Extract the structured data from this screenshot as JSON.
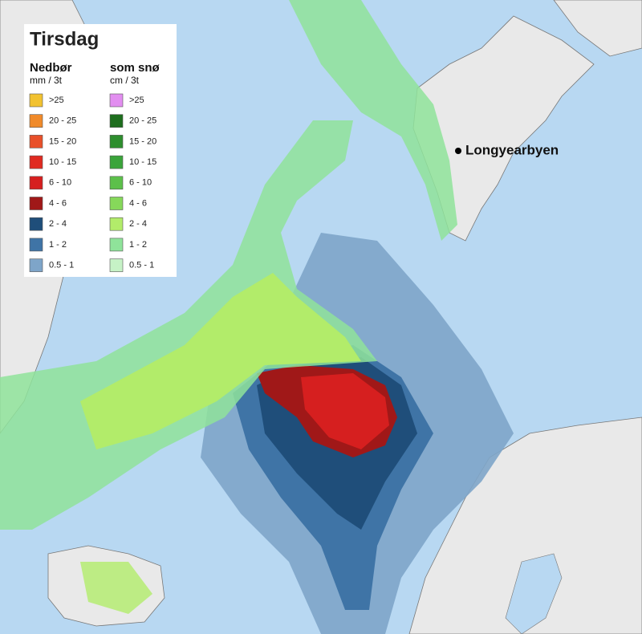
{
  "title": "Tirsdag",
  "legend": {
    "rain": {
      "title": "Nedbør",
      "unit": "mm / 3t",
      "items": [
        {
          "label": ">25",
          "color": "#f2c230"
        },
        {
          "label": "20 - 25",
          "color": "#f08a2a"
        },
        {
          "label": "15 - 20",
          "color": "#e8502a"
        },
        {
          "label": "10 - 15",
          "color": "#e02a20"
        },
        {
          "label": "6 - 10",
          "color": "#d61f1f"
        },
        {
          "label": "4 - 6",
          "color": "#a01818"
        },
        {
          "label": "2 - 4",
          "color": "#1f4e7a"
        },
        {
          "label": "1 - 2",
          "color": "#3f74a6"
        },
        {
          "label": "0.5 - 1",
          "color": "#7ea5c9"
        }
      ]
    },
    "snow": {
      "title": "som snø",
      "unit": "cm / 3t",
      "items": [
        {
          "label": ">25",
          "color": "#e28ef0"
        },
        {
          "label": "20 - 25",
          "color": "#1e6e1e"
        },
        {
          "label": "15 - 20",
          "color": "#2e8e2e"
        },
        {
          "label": "10 - 15",
          "color": "#3aa43a"
        },
        {
          "label": "6 - 10",
          "color": "#5cc04a"
        },
        {
          "label": "4 - 6",
          "color": "#86d85a"
        },
        {
          "label": "2 - 4",
          "color": "#b2ec6a"
        },
        {
          "label": "1 - 2",
          "color": "#8fe39a"
        },
        {
          "label": "0.5 - 1",
          "color": "#c6f2c6"
        }
      ]
    }
  },
  "places": [
    {
      "label": "Longyearbyen"
    }
  ]
}
